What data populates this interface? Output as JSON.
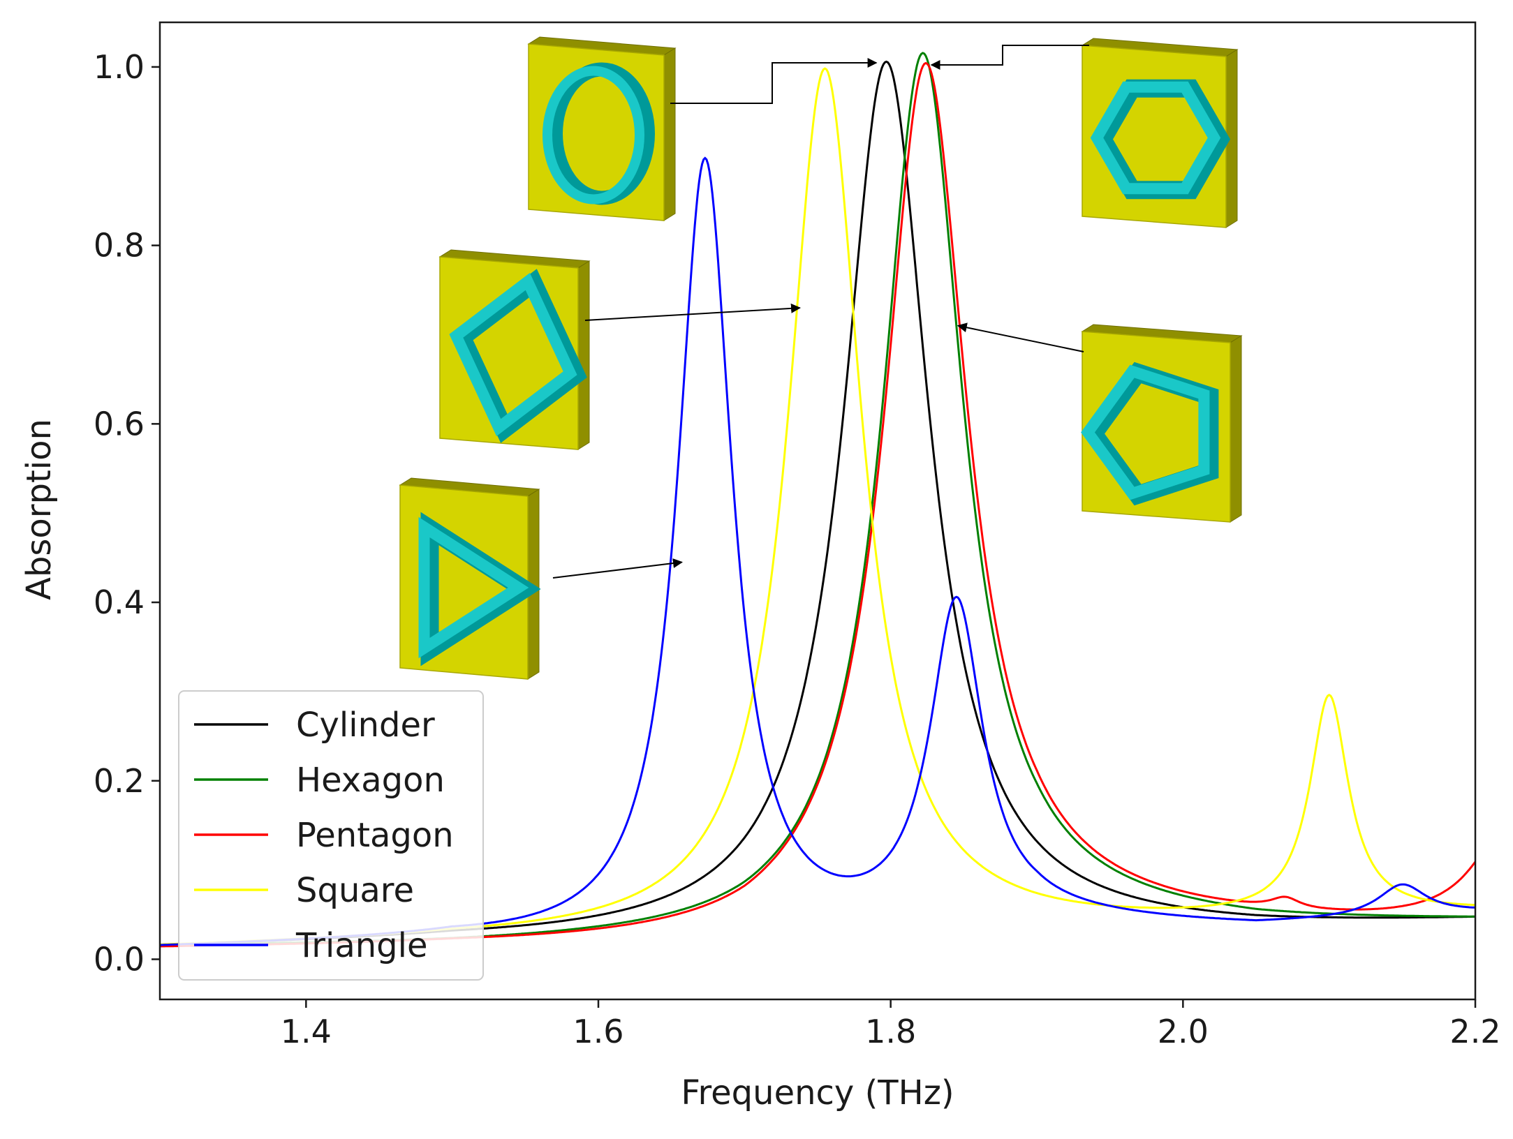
{
  "chart_data": {
    "type": "line",
    "title": "",
    "xlabel": "Frequency (THz)",
    "ylabel": "Absorption",
    "xlim": [
      1.3,
      2.2
    ],
    "ylim": [
      -0.045,
      1.05
    ],
    "xticks": [
      1.4,
      1.6,
      1.8,
      2.0,
      2.2
    ],
    "xtick_labels": [
      "1.4",
      "1.6",
      "1.8",
      "2.0",
      "2.2"
    ],
    "yticks": [
      0.0,
      0.2,
      0.4,
      0.6,
      0.8,
      1.0
    ],
    "ytick_labels": [
      "0.0",
      "0.2",
      "0.4",
      "0.6",
      "0.8",
      "1.0"
    ],
    "grid": false,
    "legend_position": "lower-left",
    "series": [
      {
        "name": "Cylinder",
        "color": "#000000",
        "peaks": [
          {
            "f0": 1.797,
            "amp": 0.985,
            "w": 0.036
          }
        ],
        "baseline": [
          [
            1.3,
            0.011
          ],
          [
            1.5,
            0.018
          ],
          [
            1.7,
            0.017
          ],
          [
            1.9,
            0.025
          ],
          [
            2.05,
            0.03
          ],
          [
            2.2,
            0.04
          ]
        ]
      },
      {
        "name": "Hexagon",
        "color": "#008000",
        "peaks": [
          {
            "f0": 1.822,
            "amp": 0.985,
            "w": 0.034
          }
        ],
        "baseline": [
          [
            1.3,
            0.012
          ],
          [
            1.5,
            0.013
          ],
          [
            1.7,
            0.016
          ],
          [
            1.9,
            0.04
          ],
          [
            2.05,
            0.035
          ],
          [
            2.2,
            0.04
          ]
        ]
      },
      {
        "name": "Pentagon",
        "color": "#ff0000",
        "peaks": [
          {
            "f0": 1.824,
            "amp": 0.975,
            "w": 0.035
          },
          {
            "f0": 2.07,
            "amp": 0.012,
            "w": 0.012
          },
          {
            "f0": 2.225,
            "amp": 0.12,
            "w": 0.03
          }
        ],
        "baseline": [
          [
            1.3,
            0.01
          ],
          [
            1.5,
            0.012
          ],
          [
            1.7,
            0.01
          ],
          [
            1.9,
            0.04
          ],
          [
            2.05,
            0.035
          ],
          [
            2.2,
            0.03
          ]
        ]
      },
      {
        "name": "Square",
        "color": "#ffff00",
        "peaks": [
          {
            "f0": 1.755,
            "amp": 0.975,
            "w": 0.031
          },
          {
            "f0": 2.1,
            "amp": 0.245,
            "w": 0.016
          }
        ],
        "baseline": [
          [
            1.3,
            0.012
          ],
          [
            1.5,
            0.02
          ],
          [
            1.7,
            0.02
          ],
          [
            1.9,
            0.03
          ],
          [
            2.05,
            0.04
          ],
          [
            2.2,
            0.05
          ]
        ]
      },
      {
        "name": "Triangle",
        "color": "#0000ff",
        "peaks": [
          {
            "f0": 1.673,
            "amp": 0.885,
            "w": 0.023
          },
          {
            "f0": 1.845,
            "amp": 0.36,
            "w": 0.022
          },
          {
            "f0": 2.15,
            "amp": 0.035,
            "w": 0.02
          }
        ],
        "baseline": [
          [
            1.3,
            0.012
          ],
          [
            1.5,
            0.02
          ],
          [
            1.7,
            0.005
          ],
          [
            1.9,
            0.04
          ],
          [
            2.05,
            0.035
          ],
          [
            2.2,
            0.05
          ]
        ]
      }
    ]
  },
  "insets": [
    {
      "name": "Cylinder",
      "shape": "ring",
      "arrow_target": [
        1.795,
        1.0
      ]
    },
    {
      "name": "Hexagon",
      "shape": "hexagon",
      "arrow_target": [
        1.825,
        0.995
      ]
    },
    {
      "name": "Square",
      "shape": "diamond",
      "arrow_target": [
        1.735,
        0.73
      ]
    },
    {
      "name": "Pentagon",
      "shape": "pentagon",
      "arrow_target": [
        1.848,
        0.71
      ]
    },
    {
      "name": "Triangle",
      "shape": "triangle",
      "arrow_target": [
        1.66,
        0.445
      ]
    }
  ],
  "colors": {
    "block_face": "#d4d400",
    "block_side": "#8f8f00",
    "ring": "#1ac8c8",
    "ring_dark": "#009999"
  }
}
